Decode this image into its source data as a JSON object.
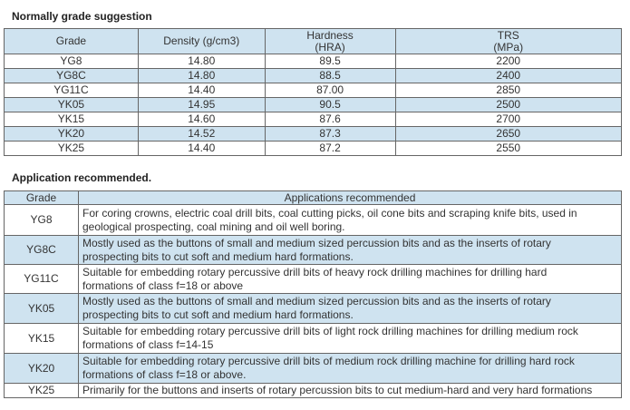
{
  "grade_section": {
    "title": "Normally grade suggestion",
    "headers": {
      "grade": "Grade",
      "density": "Density (g/cm3)",
      "hardness": "Hardness",
      "hardness_unit": "(HRA)",
      "trs": "TRS",
      "trs_unit": "(MPa)"
    },
    "rows": [
      {
        "grade": "YG8",
        "density": "14.80",
        "hardness": "89.5",
        "trs": "2200"
      },
      {
        "grade": "YG8C",
        "density": "14.80",
        "hardness": "88.5",
        "trs": "2400"
      },
      {
        "grade": "YG11C",
        "density": "14.40",
        "hardness": "87.00",
        "trs": "2850"
      },
      {
        "grade": "YK05",
        "density": "14.95",
        "hardness": "90.5",
        "trs": "2500"
      },
      {
        "grade": "YK15",
        "density": "14.60",
        "hardness": "87.6",
        "trs": "2700"
      },
      {
        "grade": "YK20",
        "density": "14.52",
        "hardness": "87.3",
        "trs": "2650"
      },
      {
        "grade": "YK25",
        "density": "14.40",
        "hardness": "87.2",
        "trs": "2550"
      }
    ]
  },
  "application_section": {
    "title": "Application recommended.",
    "headers": {
      "grade": "Grade",
      "applications": "Applications recommended"
    },
    "rows": [
      {
        "grade": "YG8",
        "line1": "For coring crowns, electric coal drill bits, coal cutting picks, oil cone bits and scraping knife bits, used in",
        "line2": "geological prospecting, coal mining and oil well boring."
      },
      {
        "grade": "YG8C",
        "line1": "Mostly used as the buttons of small and medium sized percussion bits and as the inserts of rotary",
        "line2": "prospecting bits to cut soft and medium hard formations."
      },
      {
        "grade": "YG11C",
        "line1": "Suitable for embedding rotary percussive drill bits of heavy rock drilling machines for drilling hard",
        "line2": "formations of class f=18 or above"
      },
      {
        "grade": "YK05",
        "line1": "Mostly used as the buttons of small and medium sized percussion bits and as the inserts of rotary",
        "line2": "prospecting bits to cut soft and medium hard formations."
      },
      {
        "grade": "YK15",
        "line1": "Suitable for embedding rotary percussive drill bits of light rock drilling machines for drilling medium rock",
        "line2": "formations of class f=14-15"
      },
      {
        "grade": "YK20",
        "line1": "Suitable for embedding rotary percussive drill bits of medium rock drilling machine for drilling hard rock",
        "line2": "formations of class f=18 or above."
      },
      {
        "grade": "YK25",
        "line1": "Primarily for the buttons and inserts of rotary percussion bits to cut medium-hard and very hard formations",
        "line2": ""
      }
    ]
  },
  "colors": {
    "header_fill": "#cfe3f0",
    "row_stripe": "#cfe3f0",
    "border": "#666666",
    "text": "#333333"
  }
}
